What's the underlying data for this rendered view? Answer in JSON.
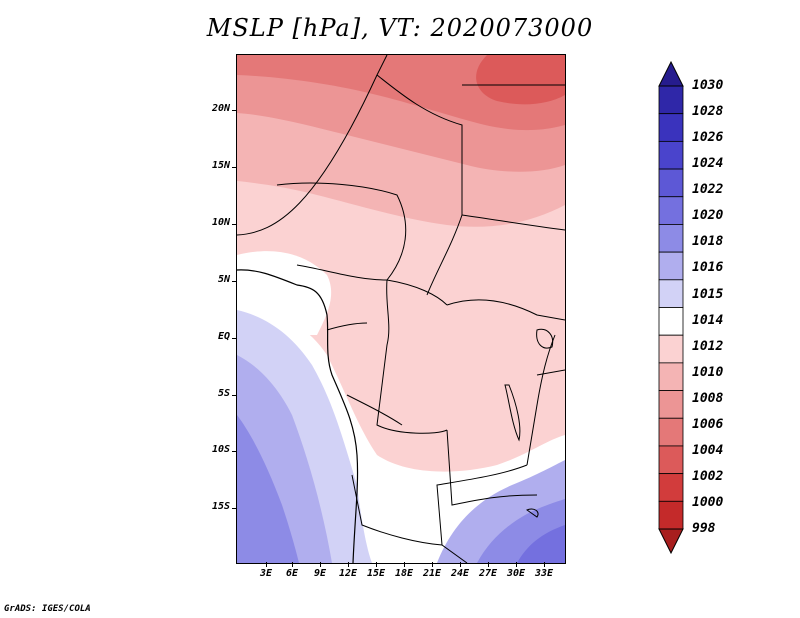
{
  "title": "MSLP [hPa], VT: 2020073000",
  "credit": "GrADS: IGES/COLA",
  "map": {
    "lat_labels": [
      "20N",
      "15N",
      "10N",
      "5N",
      "EQ",
      "5S",
      "10S",
      "15S"
    ],
    "lon_labels": [
      "3E",
      "6E",
      "9E",
      "12E",
      "15E",
      "18E",
      "21E",
      "24E",
      "27E",
      "30E",
      "33E"
    ]
  },
  "colorbar": {
    "labels": [
      "1030",
      "1028",
      "1026",
      "1024",
      "1022",
      "1020",
      "1018",
      "1016",
      "1015",
      "1014",
      "1012",
      "1010",
      "1008",
      "1006",
      "1004",
      "1002",
      "1000",
      "998"
    ],
    "colors": [
      "#261c8e",
      "#2f27a8",
      "#3a33bd",
      "#4a44cc",
      "#5d58d6",
      "#7470df",
      "#8d8be6",
      "#b0aeee",
      "#d2d2f6",
      "#ffffff",
      "#fbd2d2",
      "#f4b4b4",
      "#ec9595",
      "#e47878",
      "#dc5a5a",
      "#d23c3c",
      "#c42a2a",
      "#a81e1e"
    ]
  },
  "pressure_regions": {
    "sahara_north": "1006",
    "sahel": "1010",
    "congo_basin": "1012",
    "gulf_of_guinea": "1014",
    "south_atlantic": "1016",
    "southern_africa": "1020"
  }
}
